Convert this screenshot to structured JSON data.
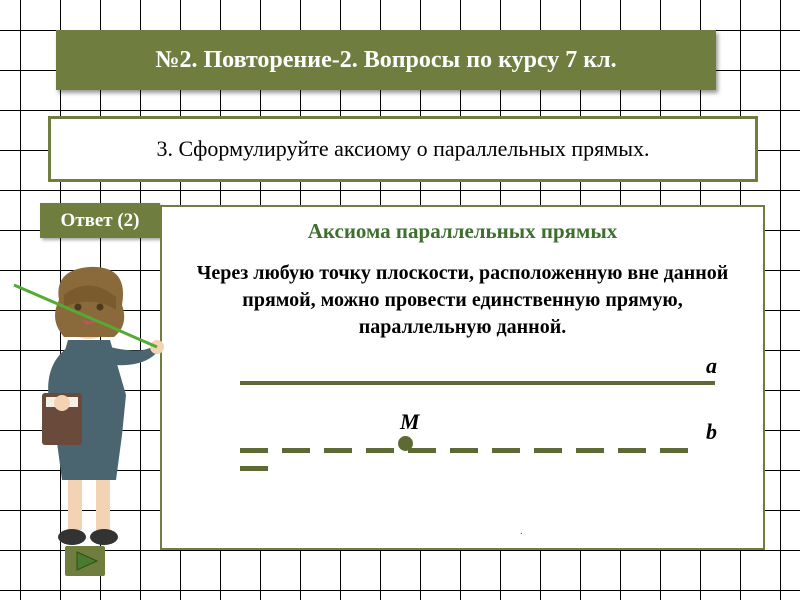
{
  "colors": {
    "olive": "#6f7d3f",
    "olive_dark": "#5d6a34",
    "title_green": "#3e6f2e",
    "border": "#6f7d3f"
  },
  "header": {
    "title": "№2. Повторение-2. Вопросы по курсу 7 кл."
  },
  "question": {
    "text": "3. Сформулируйте аксиому о параллельных прямых."
  },
  "answer_tab": {
    "label": "Ответ (2)"
  },
  "axiom": {
    "title": "Аксиома параллельных прямых",
    "body": "Через любую точку плоскости, расположенную вне данной прямой, можно провести единственную прямую, параллельную данной."
  },
  "diagram": {
    "line_a": {
      "label": "a",
      "color": "#5d6a34",
      "thickness": 4
    },
    "line_b": {
      "label": "b",
      "color": "#5d6a34",
      "dash_count": 12
    },
    "point": {
      "label": "M",
      "color": "#5d6a34"
    }
  },
  "nav": {
    "play_color": "#4a7a2f",
    "play_bg": "#6f7d3f"
  }
}
